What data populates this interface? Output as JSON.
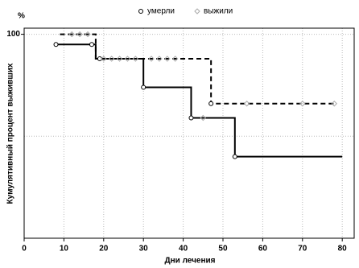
{
  "chart_data": {
    "type": "step",
    "y_unit": "%",
    "xlabel": "Дни лечения",
    "ylabel": "Кумулятивный процент выживших",
    "xlim": [
      0,
      83
    ],
    "xticks": [
      0,
      10,
      20,
      30,
      40,
      50,
      60,
      70,
      80
    ],
    "ylim": [
      0,
      103
    ],
    "yticks": [
      100
    ],
    "ygrid": [
      50,
      100
    ],
    "grid": true,
    "lines": [
      {
        "style": "solid",
        "color": "#000000",
        "x": [
          8,
          18,
          30,
          42,
          53,
          80
        ],
        "values": [
          95,
          88,
          74,
          59,
          40,
          40
        ]
      },
      {
        "style": "dashed",
        "color": "#000000",
        "x": [
          9,
          18,
          47,
          78
        ],
        "values": [
          100,
          88,
          66,
          66
        ]
      }
    ],
    "series": [
      {
        "name": "умерли",
        "marker": "circle",
        "color": "#000000",
        "x": [
          8,
          17,
          19,
          30,
          42,
          53,
          47
        ],
        "values": [
          95,
          95,
          88,
          74,
          59,
          40,
          66
        ]
      },
      {
        "name": "выжили",
        "marker": "diamond",
        "color": "#aaaaaa",
        "x": [
          12,
          14,
          16,
          20,
          22,
          24,
          26,
          28,
          32,
          34,
          36,
          38,
          45,
          56,
          70,
          78
        ],
        "values": [
          100,
          100,
          100,
          88,
          88,
          88,
          88,
          88,
          88,
          88,
          88,
          88,
          59,
          66,
          66,
          66
        ]
      }
    ]
  }
}
